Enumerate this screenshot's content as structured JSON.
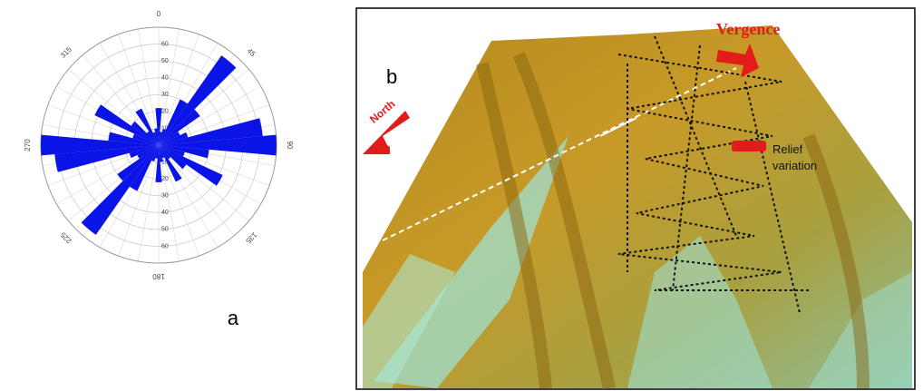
{
  "chart_data": {
    "type": "rose",
    "panel_label": "a",
    "theta": [
      0,
      10,
      20,
      30,
      40,
      50,
      60,
      70,
      80,
      90,
      100,
      110,
      120,
      130,
      140,
      150,
      160,
      170,
      180,
      190,
      200,
      210,
      220,
      230,
      240,
      250,
      260,
      270,
      280,
      290,
      300,
      310,
      320,
      330,
      340,
      350
    ],
    "values": [
      22,
      8,
      10,
      30,
      65,
      30,
      14,
      18,
      62,
      70,
      30,
      16,
      42,
      20,
      10,
      24,
      8,
      10,
      22,
      8,
      10,
      30,
      65,
      30,
      14,
      18,
      62,
      70,
      30,
      16,
      42,
      20,
      10,
      24,
      8,
      10
    ],
    "color": "#0a14e6",
    "bin_width": 10,
    "rlim": [
      0,
      70
    ],
    "rticks": [
      10,
      20,
      30,
      40,
      50,
      60
    ],
    "thetaticks": [
      0,
      45,
      90,
      135,
      180,
      225,
      270,
      315
    ]
  },
  "panel_b": {
    "label": "b",
    "annotations": [
      "Vergence",
      "North",
      "Relief variation"
    ]
  }
}
